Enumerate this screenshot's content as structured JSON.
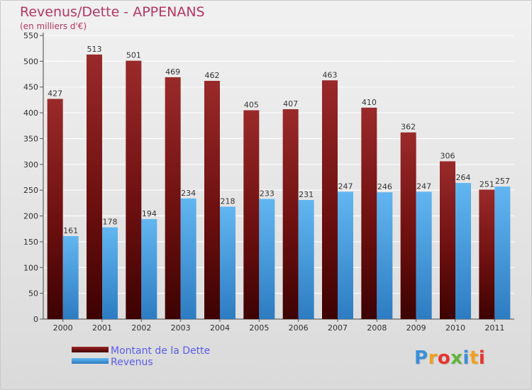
{
  "header": {
    "title": "Revenus/Dette - APPENANS",
    "subtitle": "(en milliers d'€)"
  },
  "logo": {
    "text": "Proxiti",
    "colors": [
      "#3a8fd8",
      "#f0a020",
      "#e8342c",
      "#5fb63b",
      "#3a8fd8",
      "#f0a020",
      "#e8342c"
    ]
  },
  "chart_data": {
    "type": "bar",
    "title": "Revenus/Dette - APPENANS",
    "subtitle": "(en milliers d'€)",
    "categories": [
      "2000",
      "2001",
      "2002",
      "2003",
      "2004",
      "2005",
      "2006",
      "2007",
      "2008",
      "2009",
      "2010",
      "2011"
    ],
    "series": [
      {
        "name": "Montant de la Dette",
        "color": "#7a1212",
        "values": [
          427,
          513,
          501,
          469,
          462,
          405,
          407,
          463,
          410,
          362,
          306,
          251
        ]
      },
      {
        "name": "Revenus",
        "color": "#3d9be0",
        "values": [
          161,
          178,
          194,
          234,
          218,
          233,
          231,
          247,
          246,
          247,
          264,
          257
        ]
      }
    ],
    "yticks": [
      0,
      50,
      100,
      150,
      200,
      250,
      300,
      350,
      400,
      450,
      500,
      550
    ],
    "ylim": [
      0,
      550
    ],
    "grid": true,
    "legend_position": "bottom-left"
  }
}
